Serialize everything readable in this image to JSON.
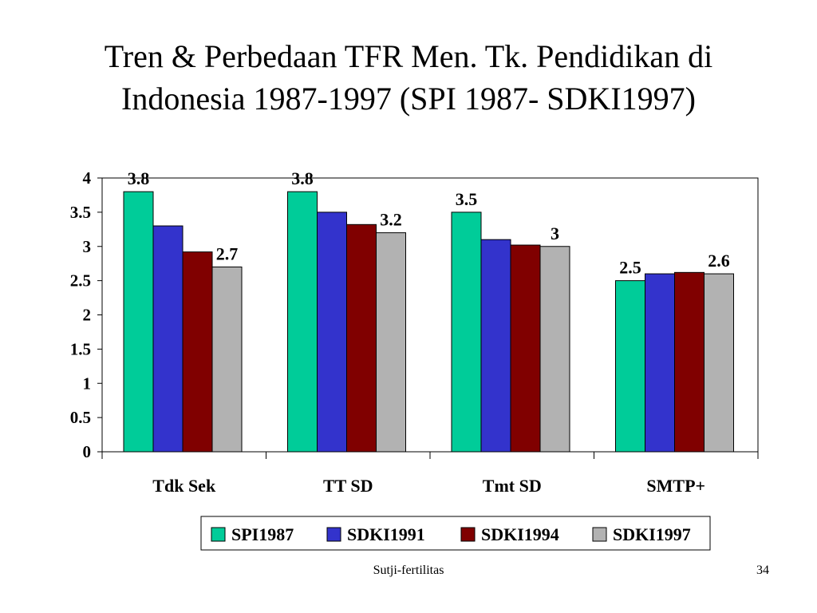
{
  "slide": {
    "title_line1": "Tren & Perbedaan TFR Men. Tk. Pendidikan di",
    "title_line2": "Indonesia 1987-1997 (SPI 1987- SDKI1997)",
    "footer": "Sutji-fertilitas",
    "page_number": "34"
  },
  "chart_data": {
    "type": "bar",
    "title": "",
    "xlabel": "",
    "ylabel": "",
    "categories": [
      "Tdk Sek",
      "TT SD",
      "Tmt SD",
      "SMTP+"
    ],
    "series": [
      {
        "name": "SPI1987",
        "color": "#00CC99",
        "values": [
          3.8,
          3.8,
          3.5,
          2.5
        ]
      },
      {
        "name": "SDKI1991",
        "color": "#3333CC",
        "values": [
          3.3,
          3.5,
          3.1,
          2.6
        ]
      },
      {
        "name": "SDKI1994",
        "color": "#800000",
        "values": [
          2.92,
          3.32,
          3.02,
          2.62
        ]
      },
      {
        "name": "SDKI1997",
        "color": "#B2B2B2",
        "values": [
          2.7,
          3.2,
          3.0,
          2.6
        ]
      }
    ],
    "ylim": [
      0,
      4
    ],
    "yticks": [
      "0",
      "0.5",
      "1",
      "1.5",
      "2",
      "2.5",
      "3",
      "3.5",
      "4"
    ],
    "data_labels": [
      {
        "category": 0,
        "series": 0,
        "text": "3.8"
      },
      {
        "category": 0,
        "series": 3,
        "text": "2.7"
      },
      {
        "category": 1,
        "series": 0,
        "text": "3.8"
      },
      {
        "category": 1,
        "series": 3,
        "text": "3.2"
      },
      {
        "category": 2,
        "series": 0,
        "text": "3.5"
      },
      {
        "category": 2,
        "series": 3,
        "text": "3"
      },
      {
        "category": 3,
        "series": 0,
        "text": "2.5"
      },
      {
        "category": 3,
        "series": 3,
        "text": "2.6"
      }
    ],
    "grid": false,
    "legend_position": "bottom"
  }
}
